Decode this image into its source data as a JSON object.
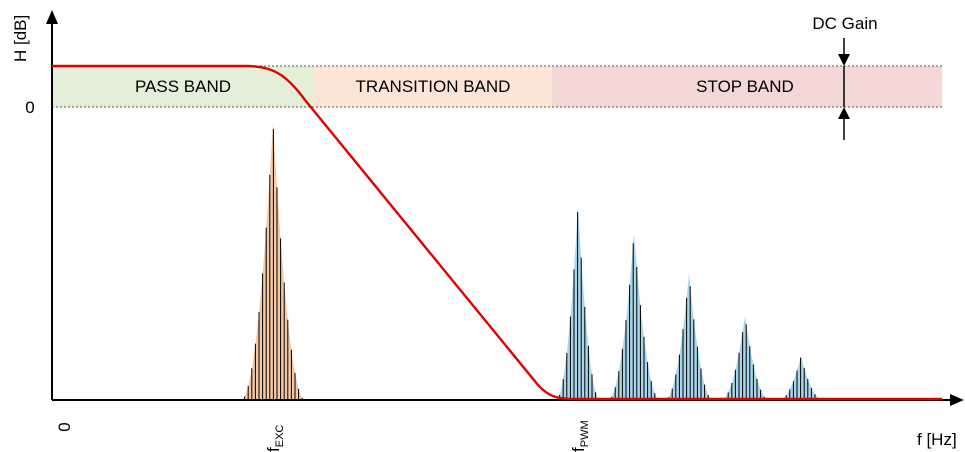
{
  "diagram": {
    "y_axis_label": "H [dB]",
    "x_axis_label": "f [Hz]",
    "origin_x_label": "0",
    "zero_db_label": "0",
    "dc_gain_label": "DC Gain",
    "bands": [
      {
        "key": "pass",
        "label": "PASS BAND",
        "color": "#e3efd9"
      },
      {
        "key": "transition",
        "label": "TRANSITION BAND",
        "color": "#fbe5d6"
      },
      {
        "key": "stop",
        "label": "STOP BAND",
        "color": "#f2d7d5"
      }
    ],
    "x_markers": [
      {
        "key": "exc",
        "main": "f",
        "sub": "EXC"
      },
      {
        "key": "pwm",
        "main": "f",
        "sub": "PWM"
      }
    ],
    "colors": {
      "filter_curve": "#e00000",
      "exc_spectrum_fill": "#f3c9a6",
      "pwm_spectrum_fill": "#a9d6ea",
      "spectral_lines": "#000000"
    }
  }
}
